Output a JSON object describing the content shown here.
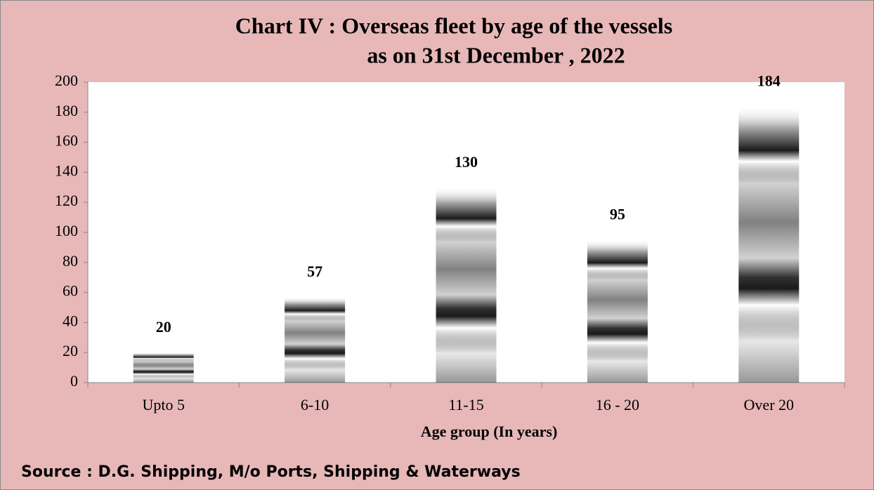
{
  "chart_data": {
    "type": "bar",
    "title": "Chart IV : Overseas fleet by age of the vessels",
    "subtitle": "as on 31st December , 2022",
    "xlabel": "Age group (In years)",
    "source": "Source : D.G. Shipping, M/o Ports, Shipping & Waterways",
    "categories": [
      "Upto 5",
      "6-10",
      "11-15",
      "16 - 20",
      "Over 20"
    ],
    "values": [
      20,
      57,
      130,
      95,
      184
    ],
    "color": "#1a1a1a",
    "ylim": [
      0,
      200
    ],
    "yticks": [
      0,
      20,
      40,
      60,
      80,
      100,
      120,
      140,
      160,
      180,
      200
    ],
    "grid": false
  }
}
